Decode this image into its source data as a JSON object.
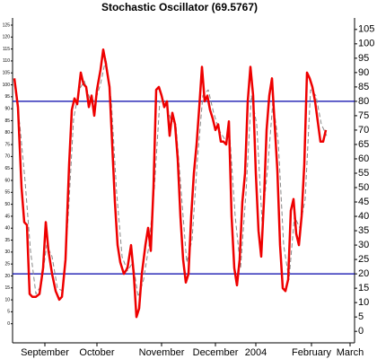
{
  "chart_data": {
    "type": "line",
    "title": "Stochastic Oscillator (69.5767)",
    "xlim": [
      0,
      381
    ],
    "xticks": [
      {
        "value": 36,
        "label": "September"
      },
      {
        "value": 94,
        "label": "October"
      },
      {
        "value": 166,
        "label": "November"
      },
      {
        "value": 226,
        "label": "December"
      },
      {
        "value": 271,
        "label": "2004"
      },
      {
        "value": 333,
        "label": "February"
      },
      {
        "value": 376,
        "label": "March"
      }
    ],
    "ylim": [
      -4,
      109
    ],
    "yticks": [
      0,
      5,
      10,
      15,
      20,
      25,
      30,
      35,
      40,
      45,
      50,
      55,
      60,
      65,
      70,
      75,
      80,
      85,
      90,
      95,
      100,
      105
    ],
    "y2lim": [
      -8,
      128
    ],
    "y2ticks": [
      0,
      5,
      10,
      15,
      20,
      25,
      30,
      35,
      40,
      45,
      50,
      55,
      60,
      65,
      70,
      75,
      80,
      85,
      90,
      95,
      100,
      105,
      110,
      115,
      120,
      125
    ],
    "reference_lines": [
      80,
      20
    ],
    "reference_color": "#0000aa",
    "series": [
      {
        "color": "#ee0000",
        "dashed": false,
        "x": [
          2,
          6,
          10,
          13,
          16,
          19,
          22,
          26,
          30,
          34,
          37,
          40,
          44,
          48,
          52,
          55,
          59,
          63,
          66,
          69,
          72,
          76,
          79,
          82,
          85,
          88,
          91,
          94,
          98,
          101,
          104,
          108,
          111,
          114,
          117,
          120,
          124,
          128,
          132,
          135,
          138,
          141,
          144,
          148,
          151,
          154,
          157,
          160,
          163,
          166,
          169,
          172,
          175,
          178,
          181,
          184,
          187,
          190,
          193,
          196,
          199,
          202,
          205,
          208,
          211,
          214,
          217,
          220,
          223,
          226,
          229,
          232,
          235,
          238,
          241,
          244,
          247,
          250,
          253,
          256,
          259,
          262,
          265,
          268,
          271,
          274,
          277,
          280,
          283,
          286,
          289,
          292,
          295,
          298,
          301,
          304,
          307,
          310,
          313,
          316,
          319,
          322,
          325,
          328,
          331,
          334,
          337,
          340,
          343,
          346,
          349
        ],
        "values": [
          88,
          78,
          50,
          38,
          37,
          13,
          12,
          12,
          13,
          22,
          38,
          28,
          20,
          14,
          11,
          12,
          25,
          58,
          77,
          81,
          79,
          90,
          86,
          85,
          78,
          82,
          75,
          84,
          91,
          98,
          93,
          85,
          65,
          45,
          30,
          24,
          20,
          22,
          30,
          20,
          5,
          8,
          20,
          30,
          36,
          28,
          50,
          84,
          85,
          82,
          78,
          80,
          68,
          76,
          72,
          60,
          40,
          25,
          17,
          20,
          40,
          55,
          65,
          78,
          92,
          80,
          82,
          77,
          74,
          70,
          72,
          66,
          66,
          65,
          73,
          40,
          22,
          16,
          25,
          45,
          55,
          80,
          92,
          82,
          55,
          35,
          26,
          45,
          70,
          82,
          88,
          72,
          56,
          30,
          15,
          14,
          18,
          42,
          46,
          34,
          30,
          40,
          58,
          90,
          88,
          85,
          80,
          73,
          66,
          66,
          70
        ]
      },
      {
        "color": "#888888",
        "dashed": true,
        "x": [
          2,
          8,
          14,
          20,
          26,
          32,
          38,
          44,
          50,
          56,
          62,
          68,
          74,
          80,
          86,
          92,
          98,
          104,
          110,
          116,
          122,
          128,
          134,
          140,
          146,
          152,
          158,
          164,
          170,
          176,
          182,
          188,
          194,
          200,
          206,
          212,
          218,
          224,
          230,
          236,
          242,
          248,
          254,
          260,
          266,
          272,
          278,
          284,
          290,
          296,
          302,
          308,
          314,
          320,
          326,
          332,
          338,
          344,
          350
        ],
        "values": [
          86,
          72,
          52,
          28,
          13,
          16,
          30,
          26,
          15,
          14,
          40,
          74,
          84,
          87,
          81,
          80,
          86,
          95,
          80,
          48,
          26,
          21,
          24,
          12,
          18,
          30,
          50,
          80,
          80,
          74,
          72,
          48,
          24,
          32,
          60,
          82,
          84,
          76,
          70,
          67,
          68,
          40,
          22,
          48,
          82,
          72,
          38,
          56,
          80,
          66,
          30,
          18,
          40,
          36,
          46,
          84,
          82,
          72,
          68
        ]
      }
    ]
  }
}
